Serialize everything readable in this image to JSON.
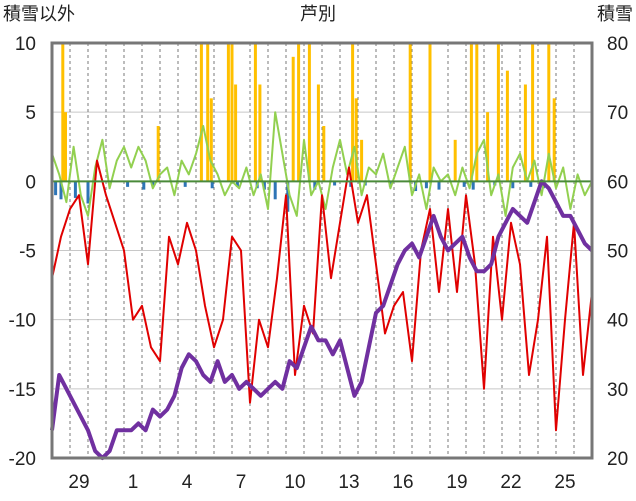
{
  "chart_data": {
    "type": "line",
    "title": "芦別",
    "ylabel_left": "積雪以外",
    "ylabel_right": "積雪",
    "ylim_left": [
      -20,
      10
    ],
    "ylim_right": [
      20,
      80
    ],
    "yticks_left": [
      "10",
      "5",
      "0",
      "-5",
      "-10",
      "-15",
      "-20"
    ],
    "yticks_right": [
      "80",
      "70",
      "60",
      "50",
      "40",
      "30",
      "20"
    ],
    "x_ticks": [
      "29",
      "1",
      "4",
      "7",
      "10",
      "13",
      "16",
      "19",
      "22",
      "25"
    ],
    "x_range": [
      0,
      30
    ],
    "x_tick_positions": [
      1.5,
      4.5,
      7.5,
      10.5,
      13.5,
      16.5,
      19.5,
      22.5,
      25.5,
      28.5
    ],
    "grid": true,
    "series": [
      {
        "name": "",
        "axis": "left",
        "style": "bars",
        "color": "#ffc000",
        "x": [
          0.6,
          0.75,
          5.9,
          8.3,
          8.65,
          8.85,
          9.8,
          10.0,
          10.2,
          11.3,
          11.55,
          13.4,
          13.7,
          14.3,
          14.8,
          15.1,
          16.7,
          16.9,
          17.2,
          19.9,
          21.0,
          22.4,
          23.3,
          23.6,
          24.2,
          24.8,
          25.3,
          26.3,
          26.7,
          27.6,
          27.9
        ],
        "values": [
          10,
          5,
          4,
          10,
          10,
          6,
          10,
          10,
          7,
          10,
          7,
          9,
          10,
          10,
          7,
          4,
          10,
          6,
          3,
          10,
          10,
          3,
          10,
          10,
          5,
          10,
          8,
          7,
          10,
          10,
          6
        ]
      },
      {
        "name": "",
        "axis": "left",
        "style": "bars",
        "color": "#2e75b6",
        "x": [
          0.2,
          0.5,
          1.3,
          2.0,
          4.2,
          5.1,
          5.6,
          7.4,
          8.9,
          10.3,
          11.4,
          11.8,
          12.4,
          13.1,
          14.6,
          15.7,
          16.6,
          17.4,
          18.8,
          20.2,
          20.8,
          21.5,
          22.9,
          23.4,
          24.6,
          25.6,
          26.6,
          27.3
        ],
        "values": [
          -1,
          -1.3,
          -1.2,
          -1.6,
          -0.4,
          -0.6,
          -0.3,
          -0.4,
          -0.5,
          -0.4,
          -0.5,
          -0.6,
          -1.3,
          -2.2,
          -0.6,
          -0.3,
          -0.4,
          -0.3,
          -0.4,
          -0.7,
          -0.5,
          -0.6,
          -0.4,
          -0.6,
          -0.3,
          -0.5,
          -0.4,
          -0.5
        ]
      },
      {
        "name": "",
        "axis": "left",
        "color": "#92d050",
        "x": [
          0,
          0.4,
          0.8,
          1.2,
          1.6,
          2.0,
          2.4,
          2.8,
          3.2,
          3.6,
          4.0,
          4.4,
          4.8,
          5.2,
          5.6,
          6.0,
          6.4,
          6.8,
          7.2,
          7.6,
          8.0,
          8.4,
          8.8,
          9.2,
          9.6,
          10.0,
          10.4,
          10.8,
          11.2,
          11.6,
          12.0,
          12.4,
          12.8,
          13.2,
          13.6,
          14.0,
          14.4,
          14.8,
          15.2,
          15.6,
          16.0,
          16.4,
          16.8,
          17.2,
          17.6,
          18.0,
          18.4,
          18.8,
          19.2,
          19.6,
          20.0,
          20.4,
          20.8,
          21.2,
          21.6,
          22.0,
          22.4,
          22.8,
          23.2,
          23.6,
          24.0,
          24.4,
          24.8,
          25.2,
          25.6,
          26.0,
          26.4,
          26.8,
          27.2,
          27.6,
          28.0,
          28.4,
          28.8,
          29.2,
          29.6,
          30.0
        ],
        "values": [
          2,
          0.5,
          -1.5,
          2.5,
          -1,
          -2.5,
          1,
          3,
          -0.5,
          1.5,
          2.5,
          1,
          2.5,
          1.5,
          -0.5,
          0.5,
          1,
          -1,
          1.5,
          0.5,
          2,
          4,
          1.5,
          0.5,
          -1,
          0,
          -0.5,
          1,
          -1,
          0.5,
          -2,
          5,
          2,
          -1,
          -2.5,
          3,
          -1,
          0,
          -2,
          1,
          3,
          0.5,
          2.5,
          -1,
          1,
          0.5,
          2,
          -0.5,
          1,
          2.5,
          -1,
          0.5,
          -2,
          1,
          0,
          0.5,
          -1,
          1,
          -0.5,
          2,
          3,
          -1,
          0.5,
          -2.5,
          1,
          2,
          0,
          1.5,
          -1,
          2,
          -0.5,
          1,
          -2,
          0.5,
          -1,
          0
        ]
      },
      {
        "name": "",
        "axis": "left",
        "color": "#e00000",
        "x": [
          0,
          0.5,
          1.0,
          1.5,
          2.0,
          2.5,
          3.0,
          3.5,
          4.0,
          4.5,
          5.0,
          5.5,
          6.0,
          6.5,
          7.0,
          7.5,
          8.0,
          8.5,
          9.0,
          9.5,
          10.0,
          10.5,
          11.0,
          11.5,
          12.0,
          12.5,
          13.0,
          13.5,
          14.0,
          14.5,
          15.0,
          15.5,
          16.0,
          16.5,
          17.0,
          17.5,
          18.0,
          18.5,
          19.0,
          19.5,
          20.0,
          20.5,
          21.0,
          21.5,
          22.0,
          22.5,
          23.0,
          23.5,
          24.0,
          24.5,
          25.0,
          25.5,
          26.0,
          26.5,
          27.0,
          27.5,
          28.0,
          28.5,
          29.0,
          29.5,
          30.0
        ],
        "values": [
          -7,
          -4,
          -2,
          -1,
          -6,
          1.5,
          -1,
          -3,
          -5,
          -10,
          -9,
          -12,
          -13,
          -4,
          -6,
          -3,
          -5,
          -9,
          -12,
          -10,
          -4,
          -5,
          -16,
          -10,
          -12,
          -7,
          -1,
          -14,
          -9,
          -11,
          -1,
          -7,
          -3,
          1,
          -3,
          -1,
          -6,
          -11,
          -9,
          -8,
          -13,
          -5,
          -2,
          -8,
          -2,
          -8,
          -1,
          -6,
          -15,
          -4,
          -10,
          -3,
          -6,
          -14,
          -10,
          -4,
          -18,
          -10,
          -3,
          -14,
          -8
        ]
      },
      {
        "name": "",
        "axis": "right",
        "color": "#7030a0",
        "x": [
          0,
          0.4,
          0.8,
          1.2,
          1.6,
          2.0,
          2.4,
          2.8,
          3.2,
          3.6,
          4.0,
          4.4,
          4.8,
          5.2,
          5.6,
          6.0,
          6.4,
          6.8,
          7.2,
          7.6,
          8.0,
          8.4,
          8.8,
          9.2,
          9.6,
          10.0,
          10.4,
          10.8,
          11.2,
          11.6,
          12.0,
          12.4,
          12.8,
          13.2,
          13.6,
          14.0,
          14.4,
          14.8,
          15.2,
          15.6,
          16.0,
          16.4,
          16.8,
          17.2,
          17.6,
          18.0,
          18.4,
          18.8,
          19.2,
          19.6,
          20.0,
          20.4,
          20.8,
          21.2,
          21.6,
          22.0,
          22.4,
          22.8,
          23.2,
          23.6,
          24.0,
          24.4,
          24.8,
          25.2,
          25.6,
          26.0,
          26.4,
          26.8,
          27.2,
          27.6,
          28.0,
          28.4,
          28.8,
          29.2,
          29.6,
          30.0
        ],
        "values": [
          24,
          32,
          30,
          28,
          26,
          24,
          21,
          20,
          21,
          24,
          24,
          24,
          25,
          24,
          27,
          26,
          27,
          29,
          33,
          35,
          34,
          32,
          31,
          34,
          31,
          32,
          30,
          31,
          30,
          29,
          30,
          31,
          30,
          34,
          33,
          36,
          39,
          37,
          37,
          35,
          37,
          33,
          29,
          31,
          36,
          41,
          42,
          45,
          48,
          50,
          51,
          49,
          52,
          55,
          52,
          50,
          51,
          52,
          49,
          47,
          47,
          48,
          52,
          54,
          56,
          55,
          54,
          57,
          60,
          59,
          57,
          55,
          55,
          53,
          51,
          50
        ]
      }
    ]
  }
}
